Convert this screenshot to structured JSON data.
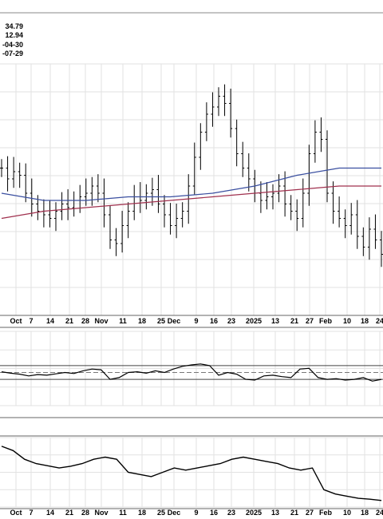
{
  "header": {
    "values": [
      "34.79",
      "12.94",
      "-04-30",
      "-07-29"
    ]
  },
  "chart_data": [
    {
      "type": "ohlc",
      "panel": "price",
      "x_ticks": [
        "Oct",
        "7",
        "14",
        "21",
        "28",
        "Nov",
        "11",
        "18",
        "25",
        "Dec",
        "9",
        "16",
        "23",
        "2025",
        "13",
        "21",
        "27",
        "Feb",
        "10",
        "18",
        "24"
      ],
      "grid": true,
      "closes": [
        20.6,
        20.3,
        20.5,
        20.4,
        19.9,
        19.6,
        19.4,
        19.3,
        19.2,
        19.4,
        19.6,
        19.5,
        19.7,
        19.8,
        19.9,
        20.1,
        19.9,
        19.3,
        18.6,
        18.5,
        19.0,
        19.4,
        19.8,
        19.7,
        19.9,
        20.0,
        19.6,
        19.3,
        19.0,
        19.2,
        19.4,
        20.1,
        20.9,
        21.6,
        22.1,
        22.3,
        22.6,
        22.4,
        21.7,
        21.0,
        20.6,
        20.3,
        19.9,
        19.7,
        19.8,
        19.9,
        20.1,
        19.6,
        19.4,
        19.2,
        19.9,
        21.0,
        21.6,
        21.4,
        19.9,
        19.4,
        19.2,
        19.0,
        19.3,
        18.7,
        18.4,
        18.9,
        18.6,
        18.2
      ],
      "series": [
        {
          "name": "",
          "color": "#3a4fa0",
          "values": [
            19.9,
            19.7,
            19.7,
            19.8,
            19.8,
            19.9,
            20.1,
            20.4,
            20.6,
            20.6
          ]
        },
        {
          "name": "",
          "color": "#a0304e",
          "values": [
            19.2,
            19.4,
            19.5,
            19.6,
            19.7,
            19.8,
            19.9,
            20.0,
            20.1,
            20.1
          ]
        }
      ]
    },
    {
      "type": "line",
      "panel": "oscillator",
      "x_ticks": [],
      "grid": true,
      "reference_lines": [
        "upper",
        "middle",
        "lower"
      ],
      "series": [
        {
          "name": "",
          "color": "#000000",
          "values": [
            52,
            48,
            45,
            40,
            44,
            42,
            46,
            50,
            47,
            55,
            60,
            58,
            30,
            35,
            50,
            52,
            48,
            55,
            50,
            60,
            68,
            72,
            75,
            70,
            42,
            50,
            45,
            30,
            28,
            40,
            42,
            38,
            35,
            60,
            62,
            35,
            30,
            32,
            28,
            30,
            35,
            25,
            30
          ]
        }
      ]
    },
    {
      "type": "line",
      "panel": "lower",
      "x_ticks": [
        "Oct",
        "7",
        "14",
        "21",
        "28",
        "Nov",
        "11",
        "18",
        "25",
        "Dec",
        "9",
        "16",
        "23",
        "2025",
        "13",
        "21",
        "27",
        "Feb",
        "10",
        "18",
        "24"
      ],
      "grid": true,
      "series": [
        {
          "name": "",
          "color": "#000000",
          "values": [
            22,
            21,
            19,
            18,
            17.5,
            17,
            17.4,
            18,
            19,
            19.5,
            19,
            16,
            15.5,
            15,
            16,
            17,
            16.5,
            17,
            17.5,
            18,
            19,
            19.5,
            19,
            18.5,
            18,
            17,
            16.5,
            17,
            12,
            11,
            10.5,
            10,
            9.8,
            9.5
          ]
        }
      ]
    }
  ]
}
